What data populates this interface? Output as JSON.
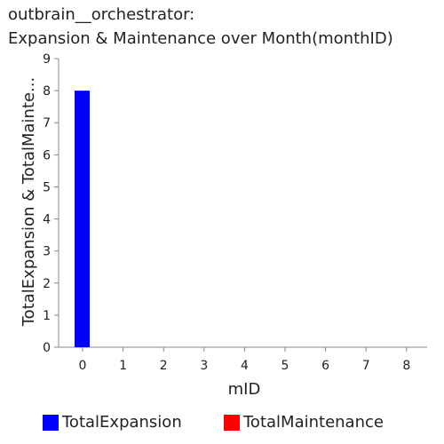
{
  "header": {
    "title_line1": "outbrain__orchestrator:",
    "title_line2": "Expansion & Maintenance over Month(monthID)"
  },
  "colors": {
    "TotalExpansion": "#0000ff",
    "TotalMaintenance": "#ff0000",
    "axis": "#888888",
    "text": "#222222"
  },
  "chart_data": {
    "type": "bar",
    "title": "outbrain__orchestrator: Expansion & Maintenance over Month(monthID)",
    "xlabel": "mID",
    "ylabel": "TotalExpansion & TotalMainte...",
    "categories": [
      "0",
      "1",
      "2",
      "3",
      "4",
      "5",
      "6",
      "7",
      "8"
    ],
    "series": [
      {
        "name": "TotalExpansion",
        "values": [
          8,
          0,
          0,
          0,
          0,
          0,
          0,
          0,
          0
        ]
      },
      {
        "name": "TotalMaintenance",
        "values": [
          0,
          0,
          0,
          0,
          0,
          0,
          0,
          0,
          0
        ]
      }
    ],
    "ylim": [
      0,
      9
    ],
    "yticks": [
      "0",
      "1",
      "2",
      "3",
      "4",
      "5",
      "6",
      "7",
      "8",
      "9"
    ],
    "grid": false,
    "legend_position": "bottom"
  }
}
